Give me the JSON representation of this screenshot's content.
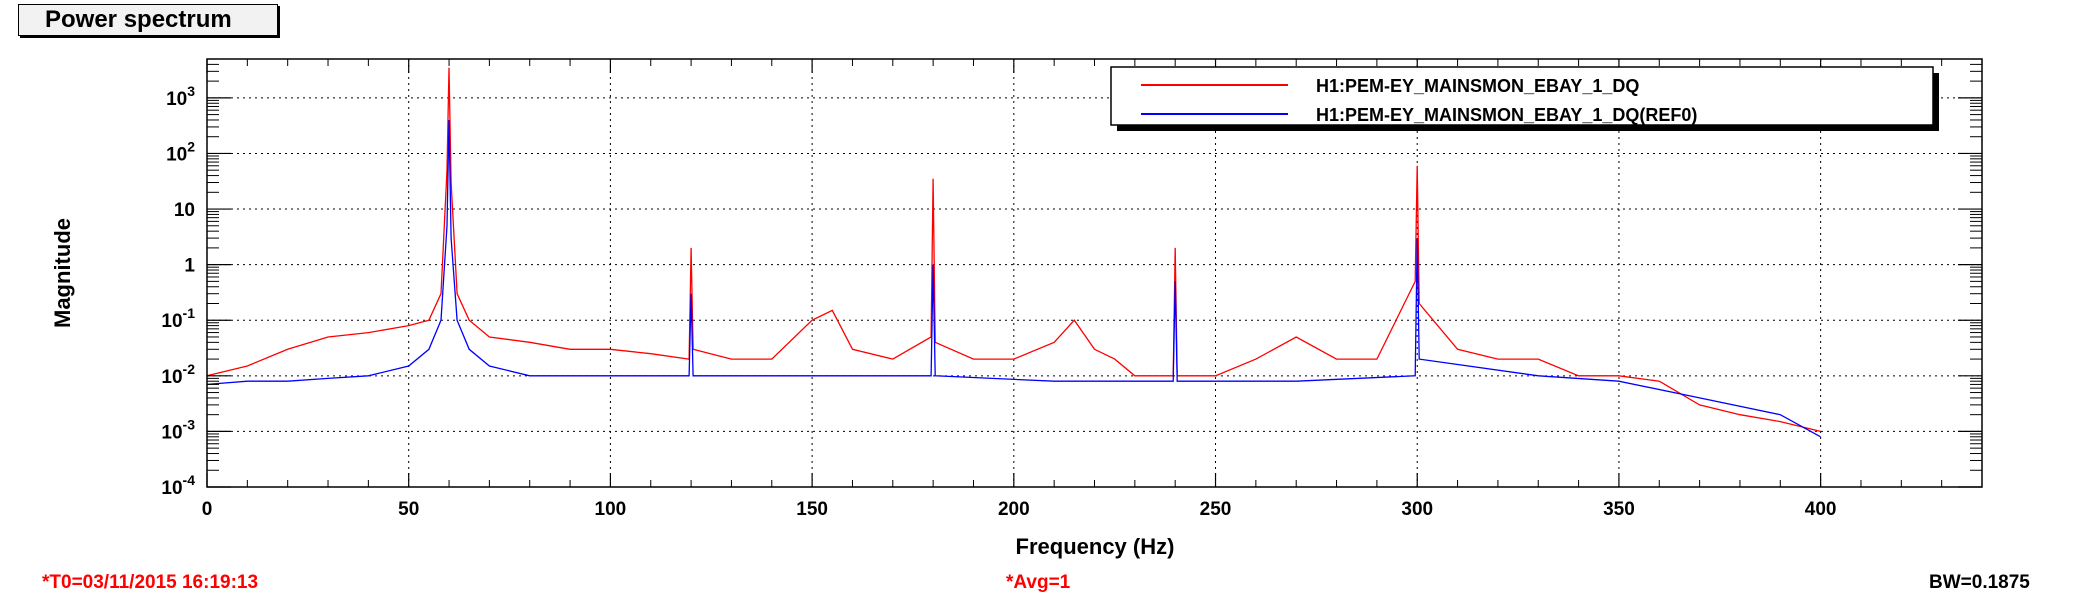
{
  "window_title": "Power spectrum",
  "footer": {
    "t0": "*T0=03/11/2015 16:19:13",
    "avg": "*Avg=1",
    "bw": "BW=0.1875"
  },
  "chart_data": {
    "type": "line",
    "xlabel": "Frequency (Hz)",
    "ylabel": "Magnitude",
    "xlim": [
      0,
      440
    ],
    "ylim": [
      0.0001,
      5000
    ],
    "yscale": "log",
    "grid": true,
    "legend_position": "top-right",
    "x_ticks": [
      0,
      50,
      100,
      150,
      200,
      250,
      300,
      350,
      400
    ],
    "y_ticks": [
      {
        "value": 0.0001,
        "label": "10^-4"
      },
      {
        "value": 0.001,
        "label": "10^-3"
      },
      {
        "value": 0.01,
        "label": "10^-2"
      },
      {
        "value": 0.1,
        "label": "10^-1"
      },
      {
        "value": 1,
        "label": "1"
      },
      {
        "value": 10,
        "label": "10"
      },
      {
        "value": 100,
        "label": "10^2"
      },
      {
        "value": 1000,
        "label": "10^3"
      }
    ],
    "series": [
      {
        "name": "H1:PEM-EY_MAINSMON_EBAY_1_DQ",
        "color": "#ff0000",
        "x": [
          0,
          10,
          20,
          30,
          40,
          50,
          55,
          58,
          59.5,
          60,
          60.5,
          62,
          65,
          70,
          80,
          90,
          100,
          110,
          119.5,
          120,
          120.5,
          130,
          140,
          150,
          155,
          160,
          170,
          179.5,
          180,
          180.5,
          190,
          200,
          210,
          215,
          220,
          225,
          230,
          239.5,
          240,
          240.5,
          250,
          260,
          270,
          280,
          290,
          299.5,
          300,
          300.5,
          310,
          320,
          330,
          340,
          350,
          360,
          370,
          380,
          390,
          400
        ],
        "y": [
          0.01,
          0.015,
          0.03,
          0.05,
          0.06,
          0.08,
          0.1,
          0.3,
          50,
          3500,
          30,
          0.3,
          0.1,
          0.05,
          0.04,
          0.03,
          0.03,
          0.025,
          0.02,
          2,
          0.03,
          0.02,
          0.02,
          0.1,
          0.15,
          0.03,
          0.02,
          0.05,
          35,
          0.04,
          0.02,
          0.02,
          0.04,
          0.1,
          0.03,
          0.02,
          0.01,
          0.01,
          2,
          0.01,
          0.01,
          0.02,
          0.05,
          0.02,
          0.02,
          0.5,
          60,
          0.2,
          0.03,
          0.02,
          0.02,
          0.01,
          0.01,
          0.008,
          0.003,
          0.002,
          0.0015,
          0.001
        ]
      },
      {
        "name": "H1:PEM-EY_MAINSMON_EBAY_1_DQ(REF0)",
        "color": "#0000ff",
        "x": [
          0,
          10,
          20,
          30,
          40,
          50,
          55,
          58,
          59.5,
          60,
          60.5,
          62,
          65,
          70,
          80,
          100,
          119.5,
          120,
          120.5,
          150,
          179.5,
          180,
          180.5,
          210,
          239.5,
          240,
          240.5,
          270,
          299.5,
          300,
          300.5,
          330,
          350,
          370,
          390,
          400
        ],
        "y": [
          0.007,
          0.008,
          0.008,
          0.009,
          0.01,
          0.015,
          0.03,
          0.1,
          5,
          400,
          3,
          0.1,
          0.03,
          0.015,
          0.01,
          0.01,
          0.01,
          0.3,
          0.01,
          0.01,
          0.01,
          1,
          0.01,
          0.008,
          0.008,
          0.5,
          0.008,
          0.008,
          0.01,
          3,
          0.02,
          0.01,
          0.008,
          0.004,
          0.002,
          0.0008
        ]
      }
    ]
  }
}
